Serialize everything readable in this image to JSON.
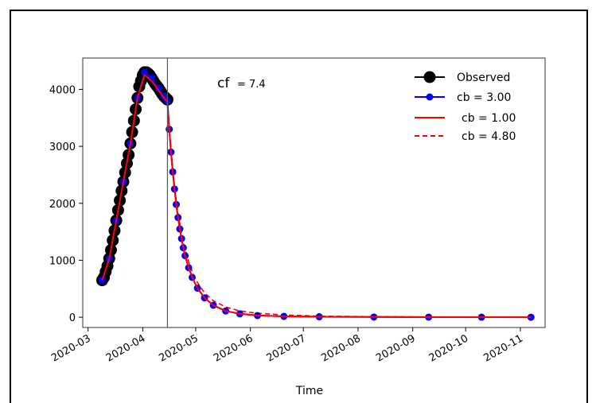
{
  "chart_data": {
    "type": "line",
    "xlabel": "Time",
    "ylabel": "",
    "xlim": [
      "2020-02-27",
      "2020-11-15"
    ],
    "ylim": [
      -180,
      4550
    ],
    "x_ticks": [
      "2020-03",
      "2020-04",
      "2020-05",
      "2020-06",
      "2020-07",
      "2020-08",
      "2020-09",
      "2020-10",
      "2020-11"
    ],
    "y_ticks": [
      0,
      1000,
      2000,
      3000,
      4000
    ],
    "vertical_line": "2020-04-15",
    "annotation": {
      "label": "cf",
      "value": "= 7.4"
    },
    "legend_position": "top-right",
    "series": [
      {
        "name": "Observed",
        "style": "black-markers",
        "color": "#000000",
        "x": [
          "2020-03-09",
          "2020-03-10",
          "2020-03-11",
          "2020-03-12",
          "2020-03-13",
          "2020-03-14",
          "2020-03-15",
          "2020-03-16",
          "2020-03-17",
          "2020-03-18",
          "2020-03-19",
          "2020-03-20",
          "2020-03-21",
          "2020-03-22",
          "2020-03-23",
          "2020-03-24",
          "2020-03-25",
          "2020-03-26",
          "2020-03-27",
          "2020-03-28",
          "2020-03-29",
          "2020-03-30",
          "2020-03-31",
          "2020-04-01",
          "2020-04-02",
          "2020-04-03",
          "2020-04-04",
          "2020-04-05",
          "2020-04-06",
          "2020-04-07",
          "2020-04-08",
          "2020-04-09",
          "2020-04-10",
          "2020-04-11",
          "2020-04-12",
          "2020-04-13",
          "2020-04-14",
          "2020-04-15"
        ],
        "y": [
          650,
          700,
          800,
          900,
          1030,
          1180,
          1350,
          1520,
          1700,
          1880,
          2050,
          2220,
          2380,
          2540,
          2700,
          2850,
          3050,
          3250,
          3450,
          3650,
          3850,
          4050,
          4150,
          4250,
          4300,
          4300,
          4280,
          4250,
          4200,
          4150,
          4100,
          4060,
          4020,
          3970,
          3920,
          3880,
          3850,
          3820
        ]
      },
      {
        "name": "cb = 3.00",
        "style": "blue-markers",
        "color": "#0000ff",
        "x": [
          "2020-03-09",
          "2020-03-13",
          "2020-03-17",
          "2020-03-21",
          "2020-03-25",
          "2020-03-29",
          "2020-04-02",
          "2020-04-06",
          "2020-04-10",
          "2020-04-13",
          "2020-04-15",
          "2020-04-16",
          "2020-04-17",
          "2020-04-18",
          "2020-04-19",
          "2020-04-20",
          "2020-04-21",
          "2020-04-22",
          "2020-04-23",
          "2020-04-24",
          "2020-04-25",
          "2020-04-27",
          "2020-04-29",
          "2020-05-02",
          "2020-05-06",
          "2020-05-11",
          "2020-05-18",
          "2020-05-26",
          "2020-06-05",
          "2020-06-20",
          "2020-07-10",
          "2020-08-10",
          "2020-09-10",
          "2020-10-10",
          "2020-11-07"
        ],
        "y": [
          650,
          1030,
          1700,
          2380,
          3050,
          3850,
          4300,
          4200,
          4020,
          3880,
          3800,
          3300,
          2900,
          2550,
          2250,
          1980,
          1750,
          1550,
          1380,
          1220,
          1080,
          870,
          700,
          510,
          340,
          210,
          110,
          60,
          30,
          15,
          8,
          4,
          2,
          1,
          0
        ]
      },
      {
        "name": "cb = 1.00",
        "style": "red-solid",
        "color": "#ff0000",
        "x": [
          "2020-03-09",
          "2020-03-13",
          "2020-03-17",
          "2020-03-21",
          "2020-03-25",
          "2020-03-29",
          "2020-04-02",
          "2020-04-06",
          "2020-04-10",
          "2020-04-13",
          "2020-04-15",
          "2020-04-16",
          "2020-04-17",
          "2020-04-18",
          "2020-04-19",
          "2020-04-20",
          "2020-04-21",
          "2020-04-22",
          "2020-04-23",
          "2020-04-24",
          "2020-04-25",
          "2020-04-27",
          "2020-04-29",
          "2020-05-02",
          "2020-05-06",
          "2020-05-11",
          "2020-05-18",
          "2020-05-26",
          "2020-06-05",
          "2020-06-20",
          "2020-07-10",
          "2020-08-10",
          "2020-09-10",
          "2020-10-10",
          "2020-11-07"
        ],
        "y": [
          650,
          1030,
          1700,
          2380,
          3050,
          3850,
          4250,
          4150,
          3980,
          3850,
          3780,
          3300,
          2900,
          2550,
          2250,
          1980,
          1750,
          1550,
          1380,
          1220,
          1080,
          870,
          700,
          510,
          340,
          210,
          110,
          60,
          30,
          15,
          8,
          4,
          2,
          1,
          0
        ]
      },
      {
        "name": "cb = 4.80",
        "style": "red-dashed",
        "color": "#ff0000",
        "x": [
          "2020-04-15",
          "2020-04-16",
          "2020-04-17",
          "2020-04-18",
          "2020-04-19",
          "2020-04-20",
          "2020-04-21",
          "2020-04-22",
          "2020-04-23",
          "2020-04-24",
          "2020-04-25",
          "2020-04-27",
          "2020-04-29",
          "2020-05-02",
          "2020-05-06",
          "2020-05-11",
          "2020-05-18",
          "2020-05-26",
          "2020-06-05",
          "2020-06-20",
          "2020-07-10",
          "2020-08-10",
          "2020-09-10",
          "2020-10-10",
          "2020-11-07"
        ],
        "y": [
          3780,
          3320,
          2940,
          2600,
          2310,
          2050,
          1830,
          1640,
          1470,
          1320,
          1190,
          980,
          800,
          610,
          430,
          290,
          180,
          110,
          70,
          40,
          20,
          10,
          5,
          2,
          1
        ]
      }
    ]
  }
}
